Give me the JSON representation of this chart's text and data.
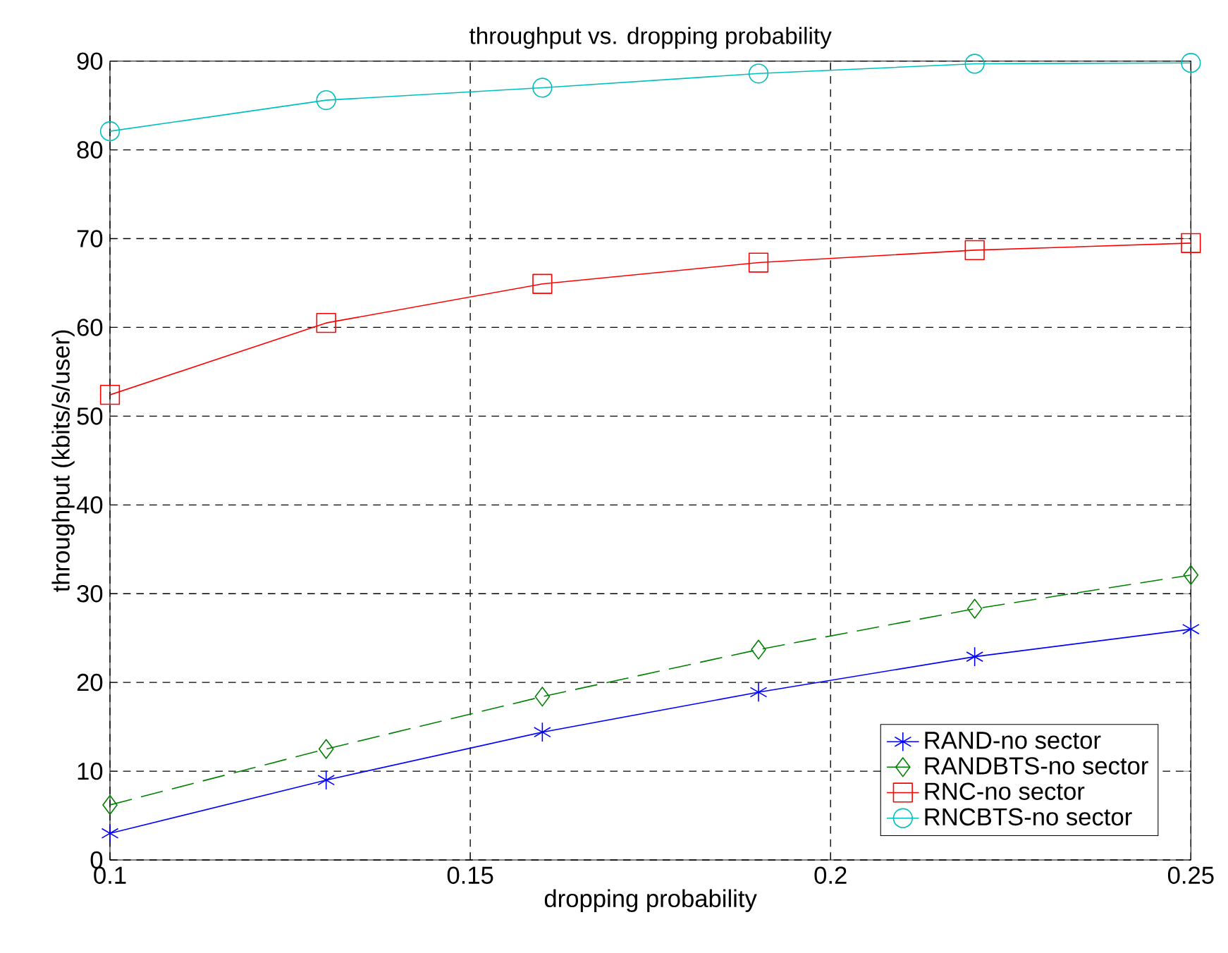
{
  "chart_data": {
    "type": "line",
    "title": "throughput vs. dropping probability",
    "xlabel": "dropping probability",
    "ylabel": "throughput (kbits/s/user)",
    "x": [
      0.1,
      0.13,
      0.16,
      0.19,
      0.22,
      0.25
    ],
    "xlim": [
      0.1,
      0.25
    ],
    "xticks": [
      0.1,
      0.15,
      0.2,
      0.25
    ],
    "ylim": [
      0,
      90
    ],
    "yticks": [
      0,
      10,
      20,
      30,
      40,
      50,
      60,
      70,
      80,
      90
    ],
    "grid": true,
    "legend": "bottom right",
    "series": [
      {
        "name": "RAND-no sector",
        "color": "#0000ff",
        "marker": "cross",
        "line_style": "solid",
        "values": [
          3.0,
          9.0,
          14.4,
          18.9,
          22.9,
          26.0
        ]
      },
      {
        "name": "RANDBTS-no sector",
        "color": "#008000",
        "marker": "diamond",
        "line_style": "dashed",
        "values": [
          6.2,
          12.5,
          18.4,
          23.7,
          28.3,
          32.1
        ]
      },
      {
        "name": "RNC-no sector",
        "color": "#ff0000",
        "marker": "square",
        "line_style": "solid",
        "values": [
          52.4,
          60.5,
          64.9,
          67.3,
          68.7,
          69.5
        ]
      },
      {
        "name": "RNCBTS-no sector",
        "color": "#00bfbf",
        "marker": "circle",
        "line_style": "solid",
        "values": [
          82.1,
          85.6,
          87.0,
          88.6,
          89.7,
          89.8
        ]
      }
    ]
  }
}
